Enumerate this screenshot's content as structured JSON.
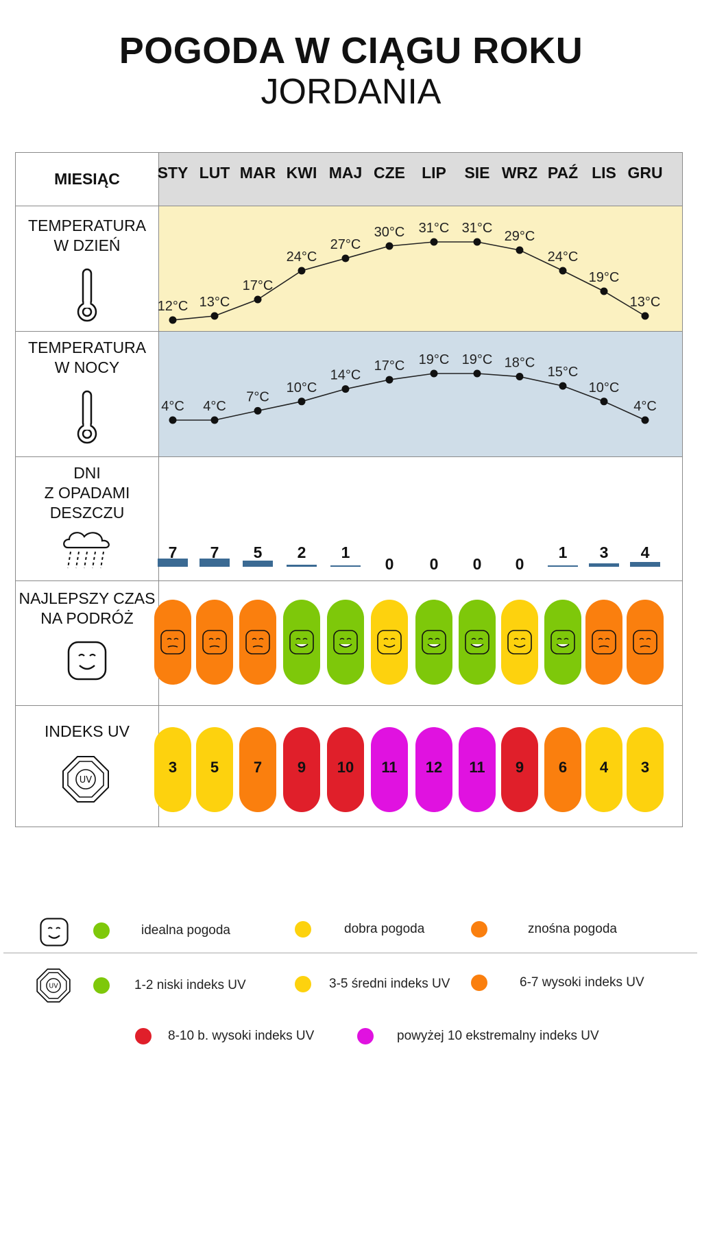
{
  "title": "POGODA W CIĄGU ROKU",
  "subtitle": "JORDANIA",
  "table": {
    "header_label": "MIESIĄC",
    "row_labels": {
      "day_temp": [
        "TEMPERATURA",
        "W DZIEŃ"
      ],
      "night_temp": [
        "TEMPERATURA",
        "W NOCY"
      ],
      "rain": [
        "DNI",
        "Z OPADAMI",
        "DESZCZU"
      ],
      "best_time": [
        "NAJLEPSZY CZAS",
        "NA PODRÓŻ"
      ],
      "uv": [
        "INDEKS UV"
      ]
    }
  },
  "chart_data": {
    "type": "line",
    "categories": [
      "STY",
      "LUT",
      "MAR",
      "KWI",
      "MAJ",
      "CZE",
      "LIP",
      "SIE",
      "WRZ",
      "PAŹ",
      "LIS",
      "GRU"
    ],
    "series": [
      {
        "name": "TEMPERATURA W DZIEŃ",
        "values": [
          12,
          13,
          17,
          24,
          27,
          30,
          31,
          31,
          29,
          24,
          19,
          13
        ],
        "labels": [
          "12°C",
          "13°C",
          "17°C",
          "24°C",
          "27°C",
          "30°C",
          "31°C",
          "31°C",
          "29°C",
          "24°C",
          "19°C",
          "13°C"
        ]
      },
      {
        "name": "TEMPERATURA W NOCY",
        "values": [
          4,
          4,
          7,
          10,
          14,
          17,
          19,
          19,
          18,
          15,
          10,
          4
        ],
        "labels": [
          "4°C",
          "4°C",
          "7°C",
          "10°C",
          "14°C",
          "17°C",
          "19°C",
          "19°C",
          "18°C",
          "15°C",
          "10°C",
          "4°C"
        ]
      }
    ],
    "rain_days": [
      7,
      7,
      5,
      2,
      1,
      0,
      0,
      0,
      0,
      1,
      3,
      4
    ],
    "best_time": [
      "znośna",
      "znośna",
      "znośna",
      "idealna",
      "idealna",
      "dobra",
      "idealna",
      "idealna",
      "dobra",
      "idealna",
      "znośna",
      "znośna"
    ],
    "uv_index": [
      3,
      5,
      7,
      9,
      10,
      11,
      12,
      11,
      9,
      6,
      4,
      3
    ]
  },
  "colors": {
    "day_band": "#fbf1c1",
    "night_band": "#cfdde8",
    "header_band": "#dcdcdc",
    "rain_bar": "#3b6a93",
    "green": "#7ec80a",
    "yellow": "#fdd20e",
    "orange": "#fa7f0e",
    "red": "#e01f2a",
    "magenta": "#e012e0"
  },
  "legend": {
    "weather": [
      {
        "label": "idealna pogoda",
        "color": "#7ec80a"
      },
      {
        "label": "dobra pogoda",
        "color": "#fdd20e"
      },
      {
        "label": "znośna pogoda",
        "color": "#fa7f0e"
      }
    ],
    "uv": [
      {
        "label": "1-2 niski indeks UV",
        "color": "#7ec80a"
      },
      {
        "label": "3-5 średni indeks UV",
        "color": "#fdd20e"
      },
      {
        "label": "6-7 wysoki indeks UV",
        "color": "#fa7f0e"
      },
      {
        "label": "8-10 b. wysoki indeks UV",
        "color": "#e01f2a"
      },
      {
        "label": "powyżej 10 ekstremalny indeks UV",
        "color": "#e012e0"
      }
    ]
  }
}
